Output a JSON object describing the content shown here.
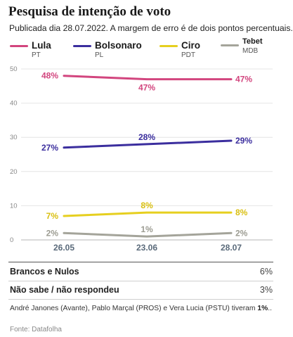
{
  "title": "Pesquisa de intenção de voto",
  "subtitle": "Publicada dia 28.07.2022. A margem de erro é de dois pontos percentuais.",
  "legend": [
    {
      "name": "Lula",
      "party": "PT",
      "color": "#d2457e"
    },
    {
      "name": "Bolsonaro",
      "party": "PL",
      "color": "#3b2e9e"
    },
    {
      "name": "Ciro",
      "party": "PDT",
      "color": "#e6cf1f"
    },
    {
      "name": "Tebet",
      "party": "MDB",
      "color": "#a4a49a"
    }
  ],
  "chart_data": {
    "type": "line",
    "title": "Pesquisa de intenção de voto",
    "subtitle": "Publicada dia 28.07.2022. A margem de erro é de dois pontos percentuais.",
    "x": [
      "26.05",
      "23.06",
      "28.07"
    ],
    "ylim": [
      0,
      50
    ],
    "yticks": [
      0,
      10,
      20,
      30,
      40,
      50
    ],
    "grid": true,
    "legend_position": "top",
    "series": [
      {
        "name": "Lula",
        "party": "PT",
        "color": "#d2457e",
        "values": [
          48,
          47,
          47
        ],
        "labels": [
          "48%",
          "47%",
          "47%"
        ]
      },
      {
        "name": "Bolsonaro",
        "party": "PL",
        "color": "#3b2e9e",
        "values": [
          27,
          28,
          29
        ],
        "labels": [
          "27%",
          "28%",
          "29%"
        ]
      },
      {
        "name": "Ciro",
        "party": "PDT",
        "color": "#e6cf1f",
        "values": [
          7,
          8,
          8
        ],
        "labels": [
          "7%",
          "8%",
          "8%"
        ]
      },
      {
        "name": "Tebet",
        "party": "MDB",
        "color": "#a4a49a",
        "values": [
          2,
          1,
          2
        ],
        "labels": [
          "2%",
          "1%",
          "2%"
        ]
      }
    ]
  },
  "table": [
    {
      "label": "Brancos e Nulos",
      "value": "6%"
    },
    {
      "label": "Não sabe / não respondeu",
      "value": "3%"
    }
  ],
  "note": {
    "text": "André Janones (Avante), Pablo Marçal (PROS) e Vera Lucia (PSTU) tiveram ",
    "value": "1%",
    "suffix": ".."
  },
  "source": "Fonte: Datafolha"
}
